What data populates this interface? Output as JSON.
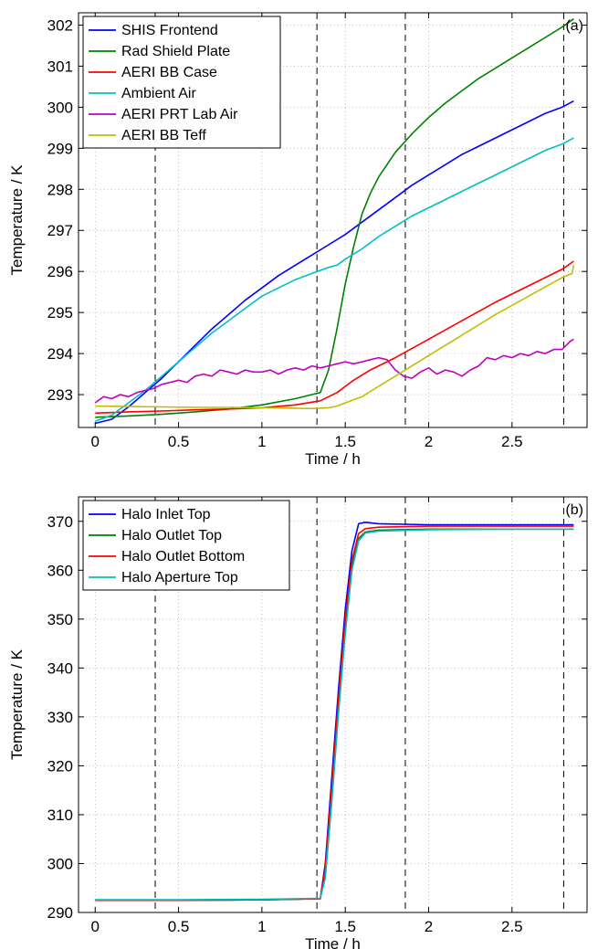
{
  "chart_data": [
    {
      "type": "line",
      "panel_label": "(a)",
      "xlabel": "Time / h",
      "ylabel": "Temperature / K",
      "xlim": [
        -0.1,
        2.95
      ],
      "ylim": [
        292.2,
        302.3
      ],
      "xticks": [
        0,
        0.5,
        1,
        1.5,
        2,
        2.5
      ],
      "xtick_labels": [
        "0",
        "0.5",
        "1",
        "1.5",
        "2",
        "2.5"
      ],
      "yticks": [
        293,
        294,
        295,
        296,
        297,
        298,
        299,
        300,
        301,
        302
      ],
      "ytick_labels": [
        "293",
        "294",
        "295",
        "296",
        "297",
        "298",
        "299",
        "300",
        "301",
        "302"
      ],
      "grid": true,
      "legend_position": "top-left",
      "vlines": [
        0.36,
        1.33,
        1.86,
        2.81
      ],
      "series": [
        {
          "name": "SHIS Frontend",
          "color": "#0000ff",
          "x": [
            0,
            0.1,
            0.2,
            0.3,
            0.4,
            0.5,
            0.6,
            0.7,
            0.8,
            0.9,
            1.0,
            1.1,
            1.2,
            1.3,
            1.4,
            1.5,
            1.6,
            1.7,
            1.8,
            1.9,
            2.0,
            2.1,
            2.2,
            2.3,
            2.4,
            2.5,
            2.6,
            2.7,
            2.8,
            2.87
          ],
          "y": [
            292.3,
            292.4,
            292.7,
            293.05,
            293.4,
            293.8,
            294.2,
            294.6,
            294.95,
            295.3,
            295.6,
            295.9,
            296.15,
            296.4,
            296.65,
            296.9,
            297.2,
            297.5,
            297.8,
            298.1,
            298.35,
            298.6,
            298.85,
            299.05,
            299.25,
            299.45,
            299.65,
            299.85,
            300.0,
            300.15
          ]
        },
        {
          "name": "Rad Shield Plate",
          "color": "#008000",
          "x": [
            0,
            0.2,
            0.4,
            0.6,
            0.8,
            1.0,
            1.2,
            1.3,
            1.35,
            1.4,
            1.45,
            1.5,
            1.55,
            1.6,
            1.65,
            1.7,
            1.8,
            1.9,
            2.0,
            2.1,
            2.2,
            2.3,
            2.4,
            2.5,
            2.6,
            2.7,
            2.8,
            2.87
          ],
          "y": [
            292.45,
            292.48,
            292.52,
            292.58,
            292.65,
            292.75,
            292.9,
            293.0,
            293.05,
            293.6,
            294.6,
            295.7,
            296.6,
            297.4,
            297.9,
            298.3,
            298.9,
            299.35,
            299.75,
            300.1,
            300.4,
            300.7,
            300.95,
            301.2,
            301.45,
            301.7,
            301.95,
            302.15
          ]
        },
        {
          "name": "AERI BB Case",
          "color": "#ff0000",
          "x": [
            0,
            0.2,
            0.4,
            0.6,
            0.8,
            1.0,
            1.2,
            1.35,
            1.45,
            1.55,
            1.65,
            1.8,
            2.0,
            2.2,
            2.4,
            2.6,
            2.8,
            2.87
          ],
          "y": [
            292.55,
            292.58,
            292.6,
            292.63,
            292.65,
            292.68,
            292.75,
            292.85,
            293.05,
            293.35,
            293.6,
            293.9,
            294.35,
            294.8,
            295.25,
            295.65,
            296.05,
            296.25
          ]
        },
        {
          "name": "Ambient Air",
          "color": "#00bfbf",
          "x": [
            0,
            0.1,
            0.2,
            0.3,
            0.4,
            0.5,
            0.6,
            0.7,
            0.8,
            0.9,
            1.0,
            1.1,
            1.2,
            1.3,
            1.4,
            1.45,
            1.5,
            1.6,
            1.7,
            1.8,
            1.9,
            2.0,
            2.1,
            2.2,
            2.3,
            2.4,
            2.5,
            2.6,
            2.7,
            2.8,
            2.87
          ],
          "y": [
            292.35,
            292.5,
            292.8,
            293.1,
            293.45,
            293.8,
            294.15,
            294.5,
            294.8,
            295.1,
            295.4,
            295.6,
            295.8,
            295.95,
            296.1,
            296.15,
            296.3,
            296.55,
            296.85,
            297.1,
            297.35,
            297.55,
            297.75,
            297.95,
            298.15,
            298.35,
            298.55,
            298.75,
            298.95,
            299.1,
            299.25
          ]
        },
        {
          "name": "AERI PRT Lab Air",
          "color": "#bf00bf",
          "x": [
            0,
            0.05,
            0.1,
            0.15,
            0.2,
            0.25,
            0.3,
            0.35,
            0.4,
            0.45,
            0.5,
            0.55,
            0.6,
            0.65,
            0.7,
            0.75,
            0.8,
            0.85,
            0.9,
            0.95,
            1.0,
            1.05,
            1.1,
            1.15,
            1.2,
            1.25,
            1.3,
            1.35,
            1.4,
            1.45,
            1.5,
            1.55,
            1.6,
            1.65,
            1.7,
            1.75,
            1.8,
            1.85,
            1.9,
            1.95,
            2.0,
            2.05,
            2.1,
            2.15,
            2.2,
            2.25,
            2.3,
            2.35,
            2.4,
            2.45,
            2.5,
            2.55,
            2.6,
            2.65,
            2.7,
            2.75,
            2.8,
            2.85,
            2.87
          ],
          "y": [
            292.8,
            292.95,
            292.9,
            293.0,
            292.95,
            293.05,
            293.1,
            293.15,
            293.25,
            293.3,
            293.35,
            293.3,
            293.45,
            293.5,
            293.45,
            293.6,
            293.55,
            293.5,
            293.6,
            293.55,
            293.55,
            293.6,
            293.5,
            293.6,
            293.65,
            293.6,
            293.7,
            293.65,
            293.7,
            293.75,
            293.8,
            293.75,
            293.8,
            293.85,
            293.9,
            293.85,
            293.6,
            293.45,
            293.4,
            293.55,
            293.65,
            293.5,
            293.6,
            293.55,
            293.45,
            293.6,
            293.7,
            293.9,
            293.85,
            293.95,
            293.9,
            294.0,
            293.95,
            294.05,
            294.0,
            294.1,
            294.1,
            294.3,
            294.35
          ]
        },
        {
          "name": "AERI BB Teff",
          "color": "#bfbf00",
          "x": [
            0,
            0.2,
            0.4,
            0.6,
            0.8,
            1.0,
            1.2,
            1.3,
            1.4,
            1.45,
            1.5,
            1.6,
            1.7,
            1.8,
            2.0,
            2.2,
            2.4,
            2.6,
            2.8,
            2.86,
            2.87
          ],
          "y": [
            292.72,
            292.71,
            292.7,
            292.69,
            292.69,
            292.68,
            292.67,
            292.66,
            292.68,
            292.72,
            292.8,
            292.95,
            293.2,
            293.45,
            293.95,
            294.45,
            294.95,
            295.4,
            295.85,
            295.95,
            296.15
          ]
        }
      ]
    },
    {
      "type": "line",
      "panel_label": "(b)",
      "xlabel": "Time / h",
      "ylabel": "Temperature / K",
      "xlim": [
        -0.1,
        2.95
      ],
      "ylim": [
        290,
        375
      ],
      "xticks": [
        0,
        0.5,
        1,
        1.5,
        2,
        2.5
      ],
      "xtick_labels": [
        "0",
        "0.5",
        "1",
        "1.5",
        "2",
        "2.5"
      ],
      "yticks": [
        290,
        300,
        310,
        320,
        330,
        340,
        350,
        360,
        370
      ],
      "ytick_labels": [
        "290",
        "300",
        "310",
        "320",
        "330",
        "340",
        "350",
        "360",
        "370"
      ],
      "grid": true,
      "legend_position": "top-left",
      "vlines": [
        0.36,
        1.33,
        1.86,
        2.81
      ],
      "series": [
        {
          "name": "Halo Inlet Top",
          "color": "#0000ff",
          "x": [
            0,
            0.5,
            1.0,
            1.35,
            1.38,
            1.42,
            1.46,
            1.5,
            1.54,
            1.58,
            1.62,
            1.7,
            2.0,
            2.5,
            2.87
          ],
          "y": [
            292.5,
            292.5,
            292.6,
            292.8,
            300,
            318,
            336,
            352,
            364,
            369.5,
            369.8,
            369.5,
            369.3,
            369.3,
            369.3
          ]
        },
        {
          "name": "Halo Outlet Top",
          "color": "#008000",
          "x": [
            0,
            0.5,
            1.0,
            1.35,
            1.38,
            1.42,
            1.46,
            1.5,
            1.54,
            1.58,
            1.62,
            1.7,
            2.0,
            2.5,
            2.87
          ],
          "y": [
            292.5,
            292.5,
            292.6,
            292.8,
            298,
            315,
            333,
            349,
            361,
            366.5,
            367.8,
            368.2,
            368.4,
            368.4,
            368.4
          ]
        },
        {
          "name": "Halo Outlet Bottom",
          "color": "#ff0000",
          "x": [
            0,
            0.5,
            1.0,
            1.35,
            1.38,
            1.42,
            1.46,
            1.5,
            1.54,
            1.58,
            1.62,
            1.7,
            2.0,
            2.5,
            2.87
          ],
          "y": [
            292.5,
            292.5,
            292.6,
            292.8,
            299,
            316,
            334,
            350,
            362,
            367.5,
            368.5,
            368.8,
            369.0,
            369.0,
            369.0
          ]
        },
        {
          "name": "Halo Aperture Top",
          "color": "#00bfbf",
          "x": [
            0,
            0.5,
            1.0,
            1.35,
            1.38,
            1.42,
            1.46,
            1.5,
            1.54,
            1.58,
            1.62,
            1.7,
            2.0,
            2.5,
            2.87
          ],
          "y": [
            292.6,
            292.6,
            292.7,
            292.9,
            297,
            313,
            331,
            347,
            360,
            366,
            367.6,
            368.0,
            368.3,
            368.4,
            368.4
          ]
        }
      ]
    }
  ]
}
